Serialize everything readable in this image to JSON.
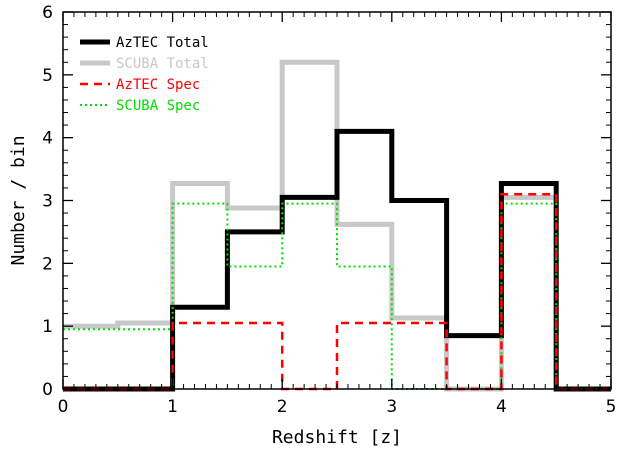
{
  "chart_data": {
    "type": "step",
    "xlabel": "Redshift [z]",
    "ylabel": "Number / bin",
    "xlim": [
      0,
      5
    ],
    "ylim": [
      0,
      6
    ],
    "xticks": [
      "0",
      "1",
      "2",
      "3",
      "4",
      "5"
    ],
    "yticks": [
      "0",
      "1",
      "2",
      "3",
      "4",
      "5",
      "6"
    ],
    "bin_edges": [
      0,
      0.5,
      1.0,
      1.5,
      2.0,
      2.5,
      3.0,
      3.5,
      4.0,
      4.5,
      5.0
    ],
    "legend_position": "top-left",
    "series": [
      {
        "name": "AzTEC Total",
        "color": "#000000",
        "style": "solid-thick",
        "values": [
          0,
          0,
          1.3,
          2.5,
          3.05,
          4.1,
          3.0,
          0.85,
          3.27,
          0
        ]
      },
      {
        "name": "SCUBA Total",
        "color": "#c8c8c8",
        "style": "solid-thick",
        "values": [
          1.0,
          1.05,
          3.27,
          2.88,
          5.2,
          2.62,
          1.13,
          0,
          3.05,
          0
        ]
      },
      {
        "name": "AzTEC Spec",
        "color": "#ff0000",
        "style": "dashed",
        "values": [
          0,
          0,
          1.05,
          1.05,
          0,
          1.05,
          1.05,
          0,
          3.1,
          0
        ]
      },
      {
        "name": "SCUBA Spec",
        "color": "#00e000",
        "style": "dotted",
        "values": [
          0.95,
          0.95,
          2.95,
          1.95,
          2.95,
          1.95,
          0,
          0,
          2.95,
          0
        ]
      }
    ]
  }
}
